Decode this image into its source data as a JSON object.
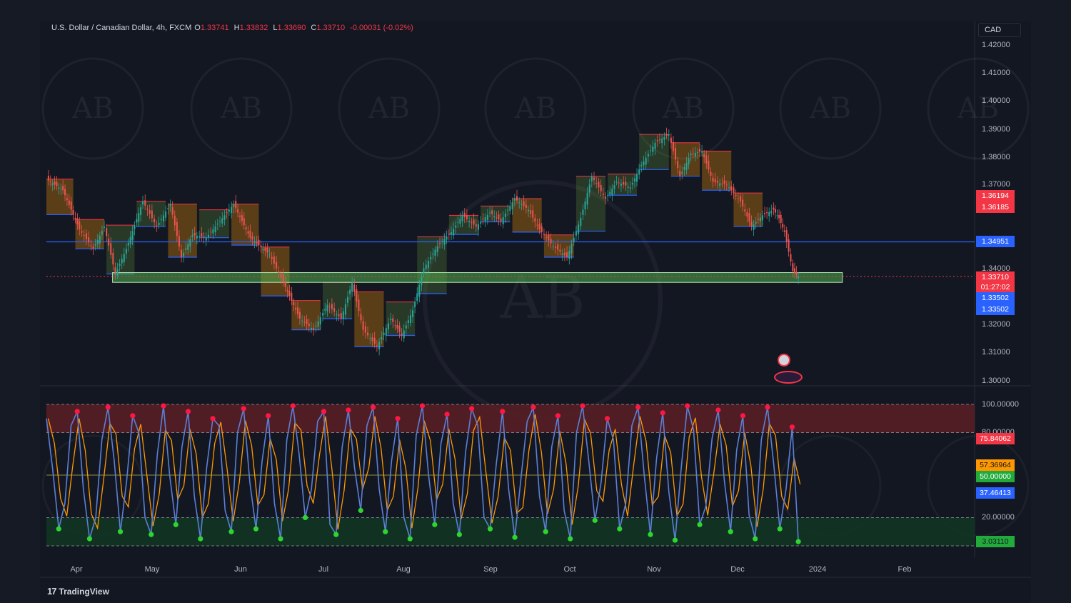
{
  "header": {
    "symbol": "U.S. Dollar / Canadian Dollar, 4h, FXCM",
    "open_label": "O",
    "open": "1.33741",
    "high_label": "H",
    "high": "1.33832",
    "low_label": "L",
    "low": "1.33690",
    "close_label": "C",
    "close": "1.33710",
    "change": "-0.00031 (-0.02%)"
  },
  "currency": "CAD",
  "watermark_text": "AB",
  "branding": "TradingView",
  "colors": {
    "up": "#26a69a",
    "down": "#ef5350",
    "support_zone": "#4caf50",
    "level_line": "#2962ff",
    "stoch_k": "#5b7fd6",
    "stoch_d": "#ff9800",
    "overbought_zone": "#5c1f26",
    "oversold_zone": "#123524"
  },
  "chart_data": [
    {
      "type": "candlestick",
      "x_range": [
        "2023-03-20",
        "2024-02-20"
      ],
      "ylim": [
        1.295,
        1.43
      ],
      "y_ticks": [
        "1.42000",
        "1.41000",
        "1.40000",
        "1.39000",
        "1.38000",
        "1.37000",
        "1.34000",
        "1.32000",
        "1.31000",
        "1.30000"
      ],
      "x_ticks": [
        "Apr",
        "May",
        "Jun",
        "Jul",
        "Aug",
        "Sep",
        "Oct",
        "Nov",
        "Dec",
        "2024",
        "Feb"
      ],
      "price_path": [
        [
          "2023-03-20",
          1.372
        ],
        [
          "2023-03-26",
          1.368
        ],
        [
          "2023-04-01",
          1.354
        ],
        [
          "2023-04-06",
          1.347
        ],
        [
          "2023-04-10",
          1.355
        ],
        [
          "2023-04-14",
          1.338
        ],
        [
          "2023-04-18",
          1.347
        ],
        [
          "2023-04-24",
          1.364
        ],
        [
          "2023-04-29",
          1.355
        ],
        [
          "2023-05-04",
          1.363
        ],
        [
          "2023-05-08",
          1.344
        ],
        [
          "2023-05-12",
          1.352
        ],
        [
          "2023-05-17",
          1.351
        ],
        [
          "2023-05-22",
          1.357
        ],
        [
          "2023-05-27",
          1.363
        ],
        [
          "2023-06-02",
          1.351
        ],
        [
          "2023-06-09",
          1.345
        ],
        [
          "2023-06-14",
          1.335
        ],
        [
          "2023-06-20",
          1.322
        ],
        [
          "2023-06-25",
          1.318
        ],
        [
          "2023-06-30",
          1.327
        ],
        [
          "2023-07-05",
          1.322
        ],
        [
          "2023-07-09",
          1.335
        ],
        [
          "2023-07-13",
          1.318
        ],
        [
          "2023-07-18",
          1.312
        ],
        [
          "2023-07-23",
          1.322
        ],
        [
          "2023-07-27",
          1.316
        ],
        [
          "2023-07-31",
          1.325
        ],
        [
          "2023-08-04",
          1.34
        ],
        [
          "2023-08-09",
          1.348
        ],
        [
          "2023-08-14",
          1.353
        ],
        [
          "2023-08-18",
          1.359
        ],
        [
          "2023-08-23",
          1.355
        ],
        [
          "2023-08-28",
          1.36
        ],
        [
          "2023-09-01",
          1.357
        ],
        [
          "2023-09-06",
          1.365
        ],
        [
          "2023-09-11",
          1.361
        ],
        [
          "2023-09-15",
          1.354
        ],
        [
          "2023-09-20",
          1.348
        ],
        [
          "2023-09-25",
          1.344
        ],
        [
          "2023-09-30",
          1.358
        ],
        [
          "2023-10-04",
          1.373
        ],
        [
          "2023-10-09",
          1.365
        ],
        [
          "2023-10-13",
          1.371
        ],
        [
          "2023-10-18",
          1.369
        ],
        [
          "2023-10-22",
          1.377
        ],
        [
          "2023-10-27",
          1.385
        ],
        [
          "2023-11-01",
          1.388
        ],
        [
          "2023-11-05",
          1.373
        ],
        [
          "2023-11-09",
          1.381
        ],
        [
          "2023-11-13",
          1.382
        ],
        [
          "2023-11-17",
          1.371
        ],
        [
          "2023-11-22",
          1.37
        ],
        [
          "2023-11-27",
          1.364
        ],
        [
          "2023-12-01",
          1.355
        ],
        [
          "2023-12-05",
          1.359
        ],
        [
          "2023-12-09",
          1.361
        ],
        [
          "2023-12-11",
          1.358
        ],
        [
          "2023-12-13",
          1.353
        ],
        [
          "2023-12-16",
          1.339
        ],
        [
          "2023-12-18",
          1.3371
        ]
      ],
      "levels": [
        {
          "price": 1.34951,
          "label": "1.34951"
        },
        {
          "price": 1.3371,
          "label": "1.33710"
        }
      ],
      "support_zone": {
        "from": "2023-04-13",
        "to": "2024-01-03",
        "low": 1.335,
        "high": 1.3385
      },
      "price_badges": [
        {
          "label": "1.36194",
          "color": "#f23645"
        },
        {
          "label": "1.36185",
          "color": "#f23645"
        },
        {
          "label": "1.34951",
          "color": "#2962ff"
        },
        {
          "label": "1.33710",
          "color": "#f23645"
        },
        {
          "label": "01:27:02",
          "color": "#f23645"
        },
        {
          "label": "1.33502",
          "color": "#2962ff"
        },
        {
          "label": "1.33502",
          "color": "#2962ff"
        }
      ]
    },
    {
      "type": "line",
      "indicator": "stochastic",
      "ylim": [
        0,
        100
      ],
      "y_ticks": [
        "100.00000",
        "80.00000",
        "20.00000"
      ],
      "levels": [
        100,
        80,
        50,
        20,
        0
      ],
      "badges": [
        {
          "label": "75.84062",
          "color": "#f23645"
        },
        {
          "label": "57.36964",
          "color": "#ff9800"
        },
        {
          "label": "50.00000",
          "color": "#22ab3b"
        },
        {
          "label": "37.46413",
          "color": "#2962ff"
        },
        {
          "label": "3.03110",
          "color": "#22ab3b"
        }
      ],
      "series": [
        {
          "values": [
            90,
            55,
            12,
            30,
            85,
            95,
            40,
            5,
            20,
            75,
            98,
            60,
            10,
            45,
            92,
            80,
            20,
            8,
            65,
            99,
            50,
            15,
            70,
            95,
            35,
            5,
            55,
            90,
            85,
            25,
            10,
            80,
            97,
            45,
            12,
            60,
            92,
            30,
            5,
            75,
            99,
            65,
            20,
            40,
            88,
            95,
            15,
            8,
            70,
            96,
            55,
            25,
            85,
            98,
            40,
            10,
            60,
            90,
            20,
            5,
            78,
            99,
            50,
            15,
            72,
            93,
            30,
            8,
            66,
            97,
            85,
            20,
            12,
            58,
            95,
            40,
            6,
            48,
            88,
            98,
            35,
            10,
            70,
            92,
            25,
            5,
            80,
            99,
            60,
            18,
            45,
            90,
            75,
            12,
            30,
            85,
            98,
            50,
            8,
            62,
            94,
            38,
            4,
            55,
            99,
            82,
            15,
            28,
            76,
            96,
            46,
            10,
            68,
            92,
            22,
            5,
            75,
            98,
            58,
            12,
            40,
            84,
            3
          ]
        }
      ]
    }
  ]
}
